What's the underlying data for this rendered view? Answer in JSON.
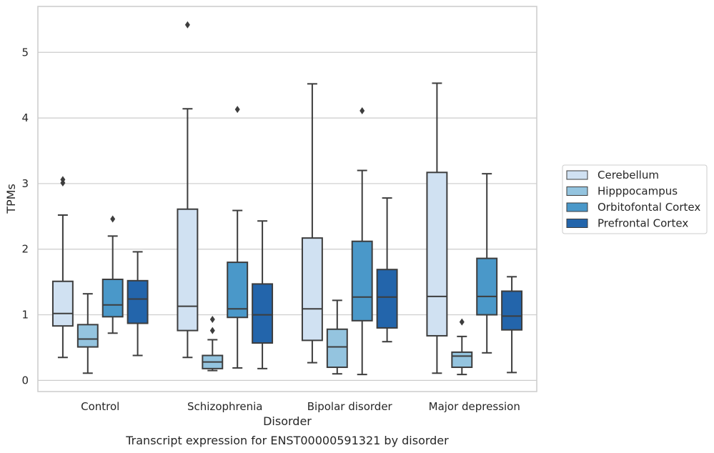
{
  "chart_data": {
    "type": "box",
    "title": "",
    "caption": "Transcript expression for ENST00000591321 by disorder",
    "xlabel": "Disorder",
    "ylabel": "TPMs",
    "ylim": [
      -0.17,
      5.7
    ],
    "yticks": [
      "0",
      "1",
      "2",
      "3",
      "4",
      "5"
    ],
    "grid": true,
    "legend_position": "right",
    "categories": [
      "Control",
      "Schizophrenia",
      "Bipolar disorder",
      "Major depression"
    ],
    "series": [
      {
        "name": "Cerebellum",
        "color": "#d0e1f2",
        "boxes": [
          {
            "whisker_low": 0.35,
            "q1": 0.83,
            "median": 1.02,
            "q3": 1.51,
            "whisker_high": 2.52,
            "outliers": [
              3.01,
              3.06
            ]
          },
          {
            "whisker_low": 0.35,
            "q1": 0.76,
            "median": 1.13,
            "q3": 2.61,
            "whisker_high": 4.14,
            "outliers": [
              5.42
            ]
          },
          {
            "whisker_low": 0.27,
            "q1": 0.61,
            "median": 1.09,
            "q3": 2.17,
            "whisker_high": 4.52,
            "outliers": []
          },
          {
            "whisker_low": 0.11,
            "q1": 0.68,
            "median": 1.28,
            "q3": 3.17,
            "whisker_high": 4.53,
            "outliers": []
          }
        ]
      },
      {
        "name": "Hipppocampus",
        "color": "#94c4df",
        "boxes": [
          {
            "whisker_low": 0.11,
            "q1": 0.51,
            "median": 0.63,
            "q3": 0.85,
            "whisker_high": 1.32,
            "outliers": []
          },
          {
            "whisker_low": 0.15,
            "q1": 0.18,
            "median": 0.28,
            "q3": 0.38,
            "whisker_high": 0.62,
            "outliers": [
              0.76,
              0.93
            ]
          },
          {
            "whisker_low": 0.1,
            "q1": 0.2,
            "median": 0.51,
            "q3": 0.78,
            "whisker_high": 1.22,
            "outliers": []
          },
          {
            "whisker_low": 0.09,
            "q1": 0.2,
            "median": 0.37,
            "q3": 0.43,
            "whisker_high": 0.67,
            "outliers": [
              0.89
            ]
          }
        ]
      },
      {
        "name": "Orbitofontal Cortex",
        "color": "#4a98c9",
        "boxes": [
          {
            "whisker_low": 0.72,
            "q1": 0.97,
            "median": 1.15,
            "q3": 1.54,
            "whisker_high": 2.2,
            "outliers": [
              2.46
            ]
          },
          {
            "whisker_low": 0.19,
            "q1": 0.96,
            "median": 1.09,
            "q3": 1.8,
            "whisker_high": 2.59,
            "outliers": [
              4.13
            ]
          },
          {
            "whisker_low": 0.09,
            "q1": 0.91,
            "median": 1.27,
            "q3": 2.12,
            "whisker_high": 3.2,
            "outliers": [
              4.11
            ]
          },
          {
            "whisker_low": 0.42,
            "q1": 1.0,
            "median": 1.28,
            "q3": 1.86,
            "whisker_high": 3.15,
            "outliers": []
          }
        ]
      },
      {
        "name": "Prefrontal Cortex",
        "color": "#2365ab",
        "boxes": [
          {
            "whisker_low": 0.38,
            "q1": 0.87,
            "median": 1.24,
            "q3": 1.52,
            "whisker_high": 1.96,
            "outliers": []
          },
          {
            "whisker_low": 0.18,
            "q1": 0.57,
            "median": 1.0,
            "q3": 1.47,
            "whisker_high": 2.43,
            "outliers": []
          },
          {
            "whisker_low": 0.59,
            "q1": 0.8,
            "median": 1.27,
            "q3": 1.69,
            "whisker_high": 2.78,
            "outliers": []
          },
          {
            "whisker_low": 0.12,
            "q1": 0.77,
            "median": 0.98,
            "q3": 1.36,
            "whisker_high": 1.58,
            "outliers": []
          }
        ]
      }
    ]
  }
}
